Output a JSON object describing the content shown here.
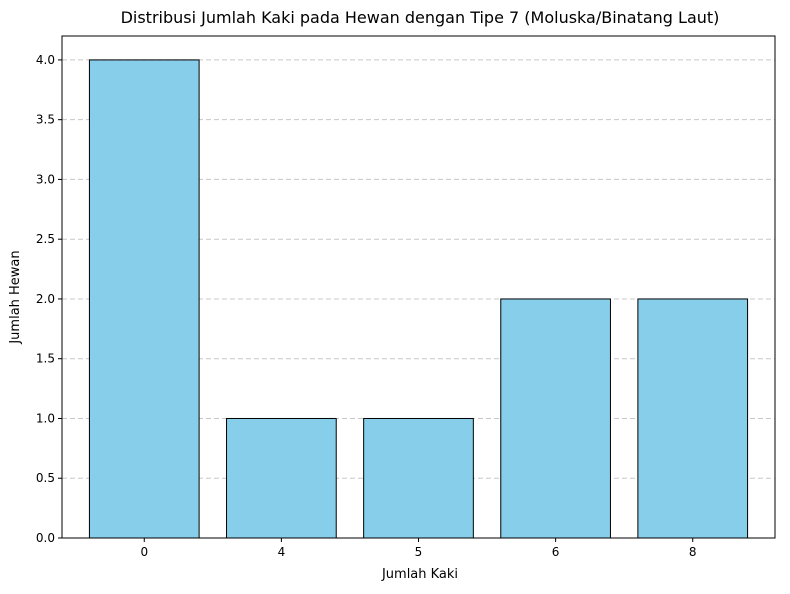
{
  "chart_data": {
    "type": "bar",
    "title": "Distribusi Jumlah Kaki pada Hewan dengan Tipe 7 (Moluska/Binatang Laut)",
    "xlabel": "Jumlah Kaki",
    "ylabel": "Jumlah Hewan",
    "categories": [
      "0",
      "4",
      "5",
      "6",
      "8"
    ],
    "values": [
      4,
      1,
      1,
      2,
      2
    ],
    "ylim": [
      0,
      4.2
    ],
    "yticks": [
      "0.0",
      "0.5",
      "1.0",
      "1.5",
      "2.0",
      "2.5",
      "3.0",
      "3.5",
      "4.0"
    ],
    "grid": "y-dashed",
    "bar_color": "#87CEEB",
    "edge_color": "#000000",
    "grid_color": "#c8c8c8"
  }
}
